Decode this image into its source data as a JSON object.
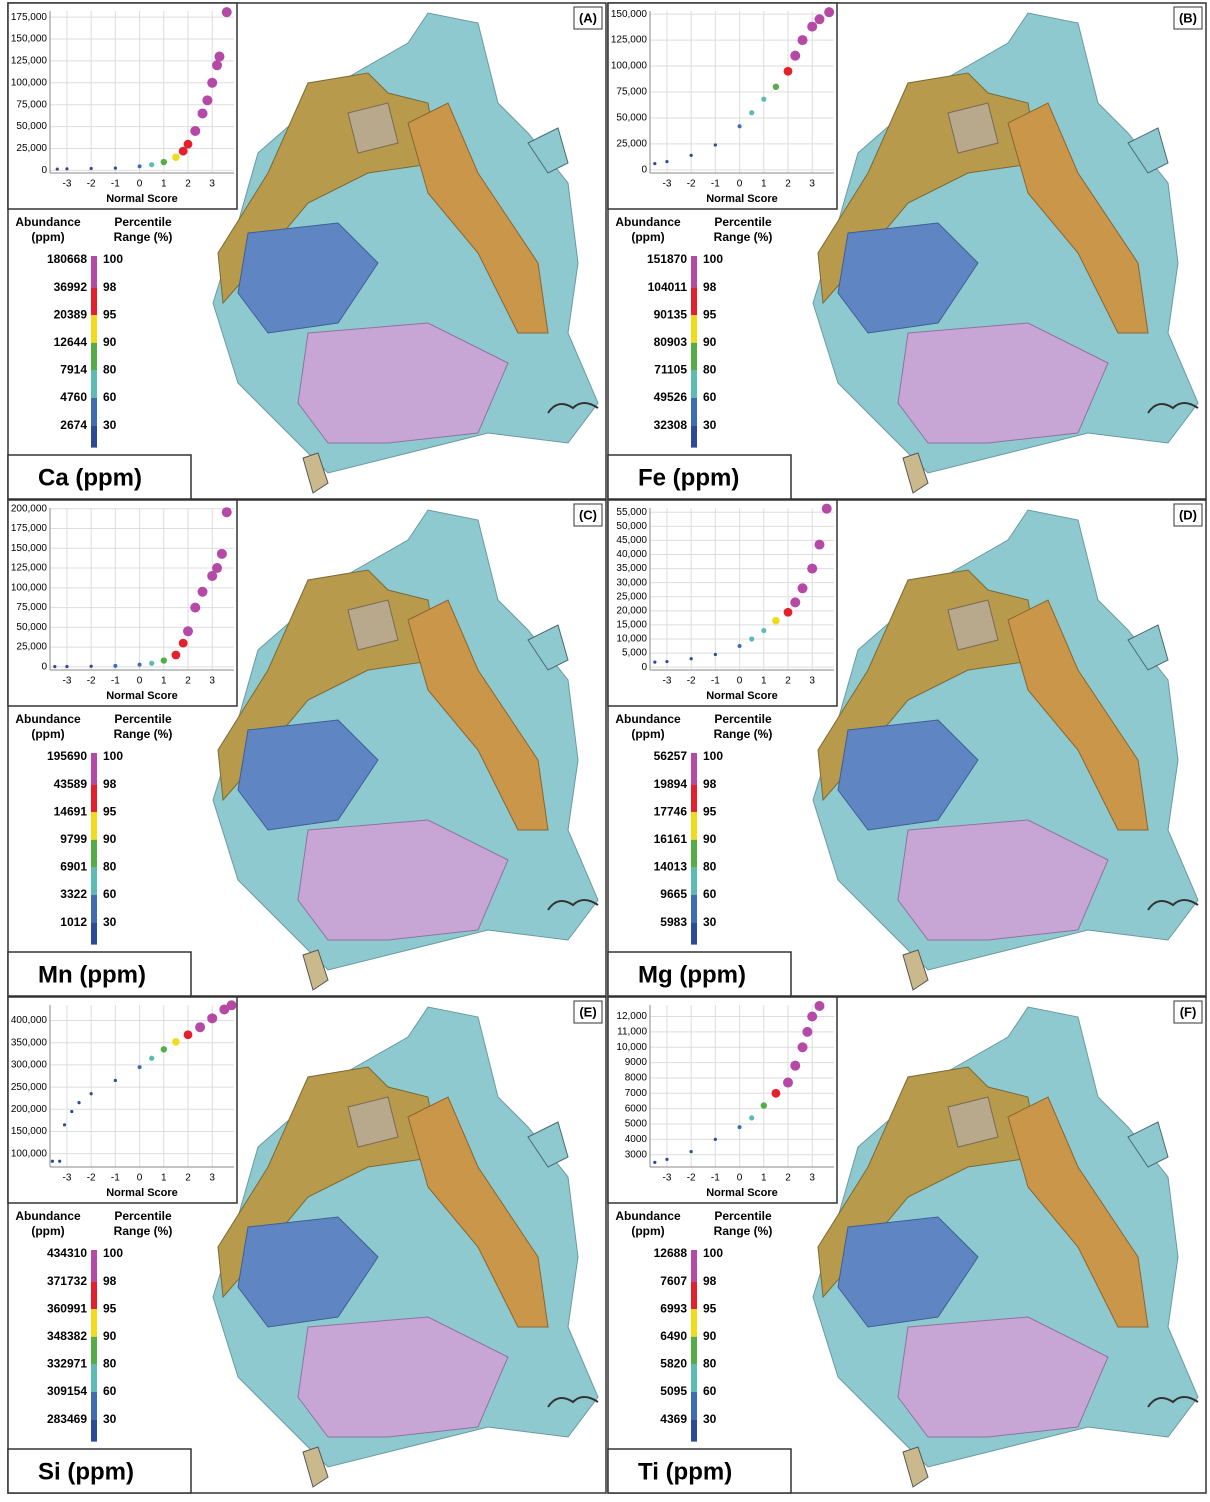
{
  "panels": [
    {
      "label": "(A)",
      "title": "Ca (ppm)",
      "abundance_header": [
        "Abundance",
        "(ppm)"
      ],
      "percentile_header": [
        "Percentile",
        "Range (%)"
      ],
      "abundances": [
        180668,
        36992,
        20389,
        12644,
        7914,
        4760,
        2674
      ],
      "percentiles": [
        100,
        98,
        95,
        90,
        80,
        60,
        30
      ],
      "bar_colors": [
        "#b54aa6",
        "#e3202b",
        "#f0dc1a",
        "#55ad48",
        "#5cbcb3",
        "#3f6db3",
        "#2d4a9a"
      ],
      "chart": {
        "type": "scatter",
        "x_label": "Normal Score",
        "x": [
          -3.4,
          -3,
          -2,
          -1,
          0,
          0.5,
          1,
          1.5,
          1.8,
          2,
          2.3,
          2.6,
          2.8,
          3,
          3.2,
          3.3,
          3.6
        ],
        "y": [
          1500,
          1800,
          2200,
          2600,
          4500,
          6500,
          9500,
          15000,
          22000,
          30000,
          45000,
          65000,
          80000,
          100000,
          120000,
          130000,
          180668
        ],
        "xlim": [
          -3.7,
          3.9
        ],
        "xticks": [
          -3,
          -2,
          -1,
          0,
          1,
          2,
          3
        ],
        "ylim": [
          -3000,
          182000
        ],
        "yticks": [
          0,
          {
            "value": 25000,
            "label": "25,000"
          },
          {
            "value": 50000,
            "label": "50,000"
          },
          {
            "value": 75000,
            "label": "75,000"
          },
          {
            "value": 100000,
            "label": "100,000"
          },
          {
            "value": 125000,
            "label": "125,000"
          },
          {
            "value": 150000,
            "label": "150,000"
          },
          {
            "value": 175000,
            "label": "175,000"
          }
        ],
        "grid": true
      }
    },
    {
      "label": "(B)",
      "title": "Fe (ppm)",
      "abundance_header": [
        "Abundance",
        "(ppm)"
      ],
      "percentile_header": [
        "Percentile",
        "Range (%)"
      ],
      "abundances": [
        151870,
        104011,
        90135,
        80903,
        71105,
        49526,
        32308
      ],
      "percentiles": [
        100,
        98,
        95,
        90,
        80,
        60,
        30
      ],
      "bar_colors": [
        "#b54aa6",
        "#e3202b",
        "#f0dc1a",
        "#55ad48",
        "#5cbcb3",
        "#3f6db3",
        "#2d4a9a"
      ],
      "chart": {
        "type": "scatter",
        "x_label": "Normal Score",
        "x": [
          -3.5,
          -3,
          -2,
          -1,
          0,
          0.5,
          1,
          1.5,
          2,
          2.3,
          2.6,
          3,
          3.3,
          3.7
        ],
        "y": [
          6000,
          8000,
          14000,
          24000,
          42000,
          55000,
          68000,
          80000,
          95000,
          110000,
          125000,
          138000,
          145000,
          151870
        ],
        "xlim": [
          -3.7,
          3.9
        ],
        "xticks": [
          -3,
          -2,
          -1,
          0,
          1,
          2,
          3
        ],
        "ylim": [
          -3000,
          153000
        ],
        "yticks": [
          0,
          {
            "value": 25000,
            "label": "25,000"
          },
          {
            "value": 50000,
            "label": "50,000"
          },
          {
            "value": 75000,
            "label": "75,000"
          },
          {
            "value": 100000,
            "label": "100,000"
          },
          {
            "value": 125000,
            "label": "125,000"
          },
          {
            "value": 150000,
            "label": "150,000"
          }
        ],
        "grid": true
      }
    },
    {
      "label": "(C)",
      "title": "Mn (ppm)",
      "abundance_header": [
        "Abundance",
        "(ppm)"
      ],
      "percentile_header": [
        "Percentile",
        "Range (%)"
      ],
      "abundances": [
        195690,
        43589,
        14691,
        9799,
        6901,
        3322,
        1012
      ],
      "percentiles": [
        100,
        98,
        95,
        90,
        80,
        60,
        30
      ],
      "bar_colors": [
        "#b54aa6",
        "#e3202b",
        "#f0dc1a",
        "#55ad48",
        "#5cbcb3",
        "#3f6db3",
        "#2d4a9a"
      ],
      "chart": {
        "type": "scatter",
        "x_label": "Normal Score",
        "x": [
          -3.5,
          -3,
          -2,
          -1,
          0,
          0.5,
          1,
          1.5,
          1.8,
          2,
          2.3,
          2.6,
          3,
          3.2,
          3.4,
          3.6
        ],
        "y": [
          300,
          400,
          700,
          1200,
          2800,
          4500,
          8000,
          15000,
          30000,
          45000,
          75000,
          95000,
          115000,
          125000,
          143000,
          195690
        ],
        "xlim": [
          -3.7,
          3.9
        ],
        "xticks": [
          -3,
          -2,
          -1,
          0,
          1,
          2,
          3
        ],
        "ylim": [
          -4000,
          201000
        ],
        "yticks": [
          0,
          {
            "value": 25000,
            "label": "25,000"
          },
          {
            "value": 50000,
            "label": "50,000"
          },
          {
            "value": 75000,
            "label": "75,000"
          },
          {
            "value": 100000,
            "label": "100,000"
          },
          {
            "value": 125000,
            "label": "125,000"
          },
          {
            "value": 150000,
            "label": "150,000"
          },
          {
            "value": 175000,
            "label": "175,000"
          },
          {
            "value": 200000,
            "label": "200,000"
          }
        ],
        "grid": true
      }
    },
    {
      "label": "(D)",
      "title": "Mg (ppm)",
      "abundance_header": [
        "Abundance",
        "(ppm)"
      ],
      "percentile_header": [
        "Percentile",
        "Range (%)"
      ],
      "abundances": [
        56257,
        19894,
        17746,
        16161,
        14013,
        9665,
        5983
      ],
      "percentiles": [
        100,
        98,
        95,
        90,
        80,
        60,
        30
      ],
      "bar_colors": [
        "#b54aa6",
        "#e3202b",
        "#f0dc1a",
        "#55ad48",
        "#5cbcb3",
        "#3f6db3",
        "#2d4a9a"
      ],
      "chart": {
        "type": "scatter",
        "x_label": "Normal Score",
        "x": [
          -3.5,
          -3,
          -2,
          -1,
          0,
          0.5,
          1,
          1.5,
          2,
          2.3,
          2.6,
          3,
          3.3,
          3.6
        ],
        "y": [
          1800,
          2000,
          3000,
          4500,
          7500,
          10000,
          13000,
          16500,
          19500,
          23000,
          28000,
          35000,
          43500,
          56257
        ],
        "xlim": [
          -3.7,
          3.9
        ],
        "xticks": [
          -3,
          -2,
          -1,
          0,
          1,
          2,
          3
        ],
        "ylim": [
          -1000,
          56500
        ],
        "yticks": [
          0,
          {
            "value": 5000,
            "label": "5,000"
          },
          {
            "value": 10000,
            "label": "10,000"
          },
          {
            "value": 15000,
            "label": "15,000"
          },
          {
            "value": 20000,
            "label": "20,000"
          },
          {
            "value": 25000,
            "label": "25,000"
          },
          {
            "value": 30000,
            "label": "30,000"
          },
          {
            "value": 35000,
            "label": "35,000"
          },
          {
            "value": 40000,
            "label": "40,000"
          },
          {
            "value": 45000,
            "label": "45,000"
          },
          {
            "value": 50000,
            "label": "50,000"
          },
          {
            "value": 55000,
            "label": "55,000"
          }
        ],
        "grid": true
      }
    },
    {
      "label": "(E)",
      "title": "Si (ppm)",
      "abundance_header": [
        "Abundance",
        "(ppm)"
      ],
      "percentile_header": [
        "Percentile",
        "Range (%)"
      ],
      "abundances": [
        434310,
        371732,
        360991,
        348382,
        332971,
        309154,
        283469
      ],
      "percentiles": [
        100,
        98,
        95,
        90,
        80,
        60,
        30
      ],
      "bar_colors": [
        "#b54aa6",
        "#e3202b",
        "#f0dc1a",
        "#55ad48",
        "#5cbcb3",
        "#3f6db3",
        "#2d4a9a"
      ],
      "chart": {
        "type": "scatter",
        "x_label": "Normal Score",
        "x": [
          -3.6,
          -3.3,
          -3.1,
          -2.8,
          -2.5,
          -2,
          -1,
          0,
          0.5,
          1,
          1.5,
          2,
          2.5,
          3,
          3.5,
          3.8
        ],
        "y": [
          83000,
          83000,
          165000,
          195000,
          215000,
          235000,
          265000,
          295000,
          315000,
          335000,
          352000,
          368000,
          385000,
          405000,
          425000,
          434310
        ],
        "xlim": [
          -3.7,
          3.9
        ],
        "xticks": [
          -3,
          -2,
          -1,
          0,
          1,
          2,
          3
        ],
        "ylim": [
          70000,
          435000
        ],
        "yticks": [
          {
            "value": 100000,
            "label": "100,000"
          },
          {
            "value": 150000,
            "label": "150,000"
          },
          {
            "value": 200000,
            "label": "200,000"
          },
          {
            "value": 250000,
            "label": "250,000"
          },
          {
            "value": 300000,
            "label": "300,000"
          },
          {
            "value": 350000,
            "label": "350,000"
          },
          {
            "value": 400000,
            "label": "400,000"
          }
        ],
        "grid": true
      }
    },
    {
      "label": "(F)",
      "title": "Ti (ppm)",
      "abundance_header": [
        "Abundance",
        "(ppm)"
      ],
      "percentile_header": [
        "Percentile",
        "Range (%)"
      ],
      "abundances": [
        12688,
        7607,
        6993,
        6490,
        5820,
        5095,
        4369
      ],
      "percentiles": [
        100,
        98,
        95,
        90,
        80,
        60,
        30
      ],
      "bar_colors": [
        "#b54aa6",
        "#e3202b",
        "#f0dc1a",
        "#55ad48",
        "#5cbcb3",
        "#3f6db3",
        "#2d4a9a"
      ],
      "chart": {
        "type": "scatter",
        "x_label": "Normal Score",
        "x": [
          -3.5,
          -3,
          -2,
          -1,
          0,
          0.5,
          1,
          1.5,
          2,
          2.3,
          2.6,
          2.8,
          3,
          3.3
        ],
        "y": [
          2500,
          2700,
          3200,
          4000,
          4800,
          5400,
          6200,
          7000,
          7700,
          8800,
          10000,
          11000,
          12000,
          12688
        ],
        "xlim": [
          -3.7,
          3.9
        ],
        "xticks": [
          -3,
          -2,
          -1,
          0,
          1,
          2,
          3
        ],
        "ylim": [
          2200,
          12750
        ],
        "yticks": [
          3000,
          4000,
          5000,
          6000,
          7000,
          8000,
          9000,
          {
            "value": 10000,
            "label": "10,000"
          },
          {
            "value": 11000,
            "label": "11,000"
          },
          {
            "value": 12000,
            "label": "12,000"
          }
        ],
        "grid": true
      }
    }
  ]
}
